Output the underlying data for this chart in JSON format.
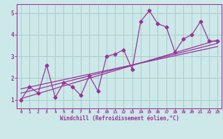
{
  "bg_color": "#cce8e8",
  "grid_color": "#aacccc",
  "line_color": "#993399",
  "xlabel": "Windchill (Refroidissement éolien,°C)",
  "xlim": [
    -0.5,
    23.5
  ],
  "ylim": [
    0.6,
    5.4
  ],
  "yticks": [
    1,
    2,
    3,
    4,
    5
  ],
  "xticks": [
    0,
    1,
    2,
    3,
    4,
    5,
    6,
    7,
    8,
    9,
    10,
    11,
    12,
    13,
    14,
    15,
    16,
    17,
    18,
    19,
    20,
    21,
    22,
    23
  ],
  "scatter_x": [
    0,
    1,
    2,
    3,
    4,
    5,
    6,
    7,
    8,
    9,
    10,
    11,
    12,
    13,
    14,
    15,
    16,
    17,
    18,
    19,
    20,
    21,
    22,
    23
  ],
  "scatter_y": [
    1.0,
    1.6,
    1.3,
    2.6,
    1.1,
    1.8,
    1.6,
    1.2,
    2.1,
    1.4,
    3.0,
    3.1,
    3.3,
    2.4,
    4.6,
    5.1,
    4.5,
    4.35,
    3.2,
    3.8,
    4.0,
    4.6,
    3.7,
    3.7
  ],
  "line1_x": [
    0,
    23
  ],
  "line1_y": [
    1.05,
    3.75
  ],
  "line2_x": [
    0,
    23
  ],
  "line2_y": [
    1.3,
    3.6
  ],
  "line3_x": [
    0,
    23
  ],
  "line3_y": [
    1.5,
    3.45
  ]
}
